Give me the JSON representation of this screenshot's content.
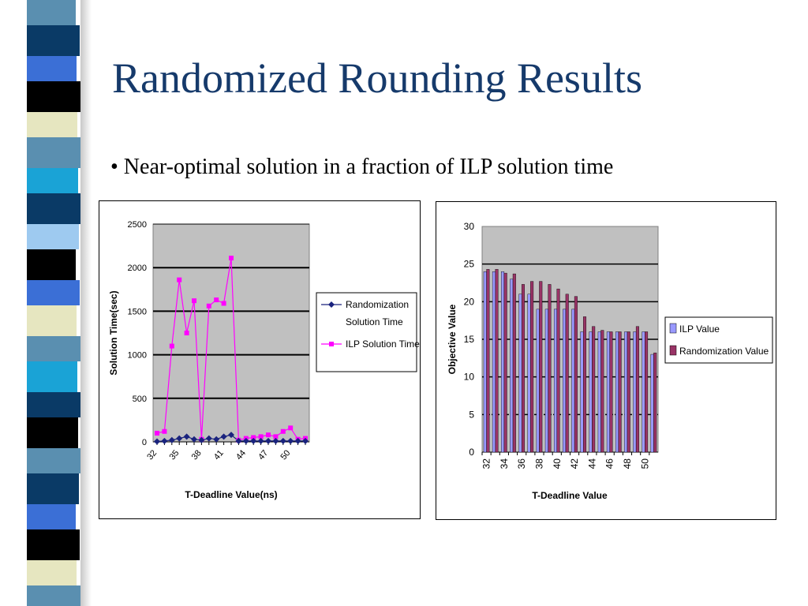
{
  "slide": {
    "title": "Randomized Rounding Results",
    "bullet": "• Near-optimal solution in a fraction of ILP solution time"
  },
  "colors": {
    "title": "#163a6b",
    "plot_bg": "#c0c0c0",
    "randomization_line": "#1a237e",
    "ilp_line": "#ff00ff",
    "ilp_bar": "#9999ff",
    "randomization_bar": "#993366"
  },
  "chart_data": [
    {
      "type": "line",
      "xlabel": "T-Deadline Value(ns)",
      "ylabel": "Solution Time(sec)",
      "ylim": [
        0,
        2500
      ],
      "yticks": [
        0,
        500,
        1000,
        1500,
        2000,
        2500
      ],
      "x": [
        32,
        33,
        34,
        35,
        36,
        37,
        38,
        39,
        40,
        41,
        42,
        43,
        44,
        45,
        46,
        47,
        48,
        49,
        50,
        51,
        52
      ],
      "xtick_labels": [
        "32",
        "35",
        "38",
        "41",
        "44",
        "47",
        "50"
      ],
      "grid": true,
      "legend": "right",
      "series": [
        {
          "name": "Randomization Solution Time",
          "name_lines": [
            "Randomization",
            "Solution Time"
          ],
          "marker": "diamond",
          "values": [
            5,
            10,
            20,
            40,
            60,
            30,
            20,
            40,
            30,
            60,
            80,
            10,
            10,
            10,
            10,
            10,
            10,
            10,
            10,
            10,
            10
          ]
        },
        {
          "name": "ILP Solution Time",
          "name_lines": [
            "ILP Solution Time"
          ],
          "marker": "square",
          "values": [
            100,
            120,
            1100,
            1860,
            1250,
            1620,
            30,
            1560,
            1630,
            1590,
            2110,
            20,
            40,
            50,
            60,
            80,
            60,
            120,
            160,
            30,
            40
          ]
        }
      ]
    },
    {
      "type": "bar",
      "xlabel": "T-Deadline Value",
      "ylabel": "Objective Value",
      "ylim": [
        0,
        30
      ],
      "yticks": [
        0,
        5,
        10,
        15,
        20,
        25,
        30
      ],
      "categories": [
        "32",
        "33",
        "34",
        "35",
        "36",
        "37",
        "38",
        "39",
        "40",
        "41",
        "42",
        "43",
        "44",
        "45",
        "46",
        "47",
        "48",
        "49",
        "50",
        "51"
      ],
      "xtick_labels": [
        "32",
        "34",
        "36",
        "38",
        "40",
        "42",
        "44",
        "46",
        "48",
        "50"
      ],
      "grid": true,
      "legend": "right",
      "series": [
        {
          "name": "ILP Value",
          "values": [
            24,
            24,
            24,
            23,
            21,
            21,
            19,
            19,
            19,
            19,
            19,
            16,
            16,
            16,
            16,
            16,
            16,
            16,
            16,
            13
          ]
        },
        {
          "name": "Randomization Value",
          "values": [
            24.3,
            24.3,
            23.8,
            23.7,
            22.3,
            22.7,
            22.7,
            22.3,
            21.7,
            21,
            20.7,
            18,
            16.7,
            16.2,
            16,
            16,
            16,
            16.7,
            16,
            13.2
          ]
        }
      ]
    }
  ]
}
